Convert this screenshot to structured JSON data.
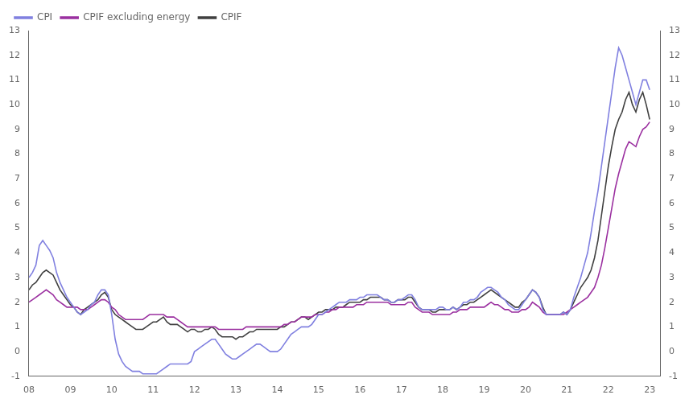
{
  "chart_data": {
    "type": "line",
    "x": [
      2008,
      2008.083333,
      2008.166667,
      2008.25,
      2008.333333,
      2008.416667,
      2008.5,
      2008.583333,
      2008.666667,
      2008.75,
      2008.833333,
      2008.916667,
      2009,
      2009.083333,
      2009.166667,
      2009.25,
      2009.333333,
      2009.416667,
      2009.5,
      2009.583333,
      2009.666667,
      2009.75,
      2009.833333,
      2009.916667,
      2010,
      2010.083333,
      2010.166667,
      2010.25,
      2010.333333,
      2010.416667,
      2010.5,
      2010.583333,
      2010.666667,
      2010.75,
      2010.833333,
      2010.916667,
      2011,
      2011.083333,
      2011.166667,
      2011.25,
      2011.333333,
      2011.416667,
      2011.5,
      2011.583333,
      2011.666667,
      2011.75,
      2011.833333,
      2011.916667,
      2012,
      2012.083333,
      2012.166667,
      2012.25,
      2012.333333,
      2012.416667,
      2012.5,
      2012.583333,
      2012.666667,
      2012.75,
      2012.833333,
      2012.916667,
      2013,
      2013.083333,
      2013.166667,
      2013.25,
      2013.333333,
      2013.416667,
      2013.5,
      2013.583333,
      2013.666667,
      2013.75,
      2013.833333,
      2013.916667,
      2014,
      2014.083333,
      2014.166667,
      2014.25,
      2014.333333,
      2014.416667,
      2014.5,
      2014.583333,
      2014.666667,
      2014.75,
      2014.833333,
      2014.916667,
      2015,
      2015.083333,
      2015.166667,
      2015.25,
      2015.333333,
      2015.416667,
      2015.5,
      2015.583333,
      2015.666667,
      2015.75,
      2015.833333,
      2015.916667,
      2016,
      2016.083333,
      2016.166667,
      2016.25,
      2016.333333,
      2016.416667,
      2016.5,
      2016.583333,
      2016.666667,
      2016.75,
      2016.833333,
      2016.916667,
      2017,
      2017.083333,
      2017.166667,
      2017.25,
      2017.333333,
      2017.416667,
      2017.5,
      2017.583333,
      2017.666667,
      2017.75,
      2017.833333,
      2017.916667,
      2018,
      2018.083333,
      2018.166667,
      2018.25,
      2018.333333,
      2018.416667,
      2018.5,
      2018.583333,
      2018.666667,
      2018.75,
      2018.833333,
      2018.916667,
      2019,
      2019.083333,
      2019.166667,
      2019.25,
      2019.333333,
      2019.416667,
      2019.5,
      2019.583333,
      2019.666667,
      2019.75,
      2019.833333,
      2019.916667,
      2020,
      2020.083333,
      2020.166667,
      2020.25,
      2020.333333,
      2020.416667,
      2020.5,
      2020.583333,
      2020.666667,
      2020.75,
      2020.833333,
      2020.916667,
      2021,
      2021.083333,
      2021.166667,
      2021.25,
      2021.333333,
      2021.416667,
      2021.5,
      2021.583333,
      2021.666667,
      2021.75,
      2021.833333,
      2021.916667,
      2022,
      2022.083333,
      2022.166667,
      2022.25,
      2022.333333,
      2022.416667,
      2022.5,
      2022.583333,
      2022.666667,
      2022.75,
      2022.833333,
      2022.916667,
      2023
    ],
    "series": [
      {
        "name": "CPI",
        "color": "#8080E0",
        "values": [
          3.0,
          3.2,
          3.5,
          4.3,
          4.5,
          4.3,
          4.1,
          3.8,
          3.2,
          2.8,
          2.5,
          2.2,
          2.0,
          1.8,
          1.6,
          1.5,
          1.6,
          1.7,
          1.9,
          2.0,
          2.3,
          2.5,
          2.5,
          2.3,
          1.5,
          0.5,
          -0.1,
          -0.4,
          -0.6,
          -0.7,
          -0.8,
          -0.8,
          -0.8,
          -0.9,
          -0.9,
          -0.9,
          -0.9,
          -0.9,
          -0.8,
          -0.7,
          -0.6,
          -0.5,
          -0.5,
          -0.5,
          -0.5,
          -0.5,
          -0.5,
          -0.4,
          0.0,
          0.1,
          0.2,
          0.3,
          0.4,
          0.5,
          0.5,
          0.3,
          0.1,
          -0.1,
          -0.2,
          -0.3,
          -0.3,
          -0.2,
          -0.1,
          0.0,
          0.1,
          0.2,
          0.3,
          0.3,
          0.2,
          0.1,
          0.0,
          0.0,
          0.0,
          0.1,
          0.3,
          0.5,
          0.7,
          0.8,
          0.9,
          1.0,
          1.0,
          1.0,
          1.1,
          1.3,
          1.5,
          1.5,
          1.6,
          1.7,
          1.8,
          1.9,
          2.0,
          2.0,
          2.0,
          2.1,
          2.1,
          2.1,
          2.2,
          2.2,
          2.3,
          2.3,
          2.3,
          2.3,
          2.2,
          2.1,
          2.1,
          2.0,
          2.0,
          2.1,
          2.1,
          2.2,
          2.3,
          2.3,
          2.1,
          1.8,
          1.7,
          1.7,
          1.7,
          1.7,
          1.7,
          1.8,
          1.8,
          1.7,
          1.7,
          1.8,
          1.7,
          1.8,
          2.0,
          2.0,
          2.1,
          2.1,
          2.2,
          2.4,
          2.5,
          2.6,
          2.6,
          2.5,
          2.4,
          2.2,
          2.1,
          1.9,
          1.8,
          1.7,
          1.7,
          1.9,
          2.1,
          2.3,
          2.5,
          2.4,
          2.2,
          1.7,
          1.5,
          1.5,
          1.5,
          1.5,
          1.5,
          1.6,
          1.5,
          1.7,
          2.2,
          2.6,
          3.0,
          3.5,
          4.0,
          4.8,
          5.7,
          6.5,
          7.5,
          8.5,
          9.5,
          10.5,
          11.5,
          12.3,
          12.0,
          11.5,
          11.0,
          10.5,
          10.0,
          10.5,
          11.0,
          11.0,
          10.6
        ]
      },
      {
        "name": "CPIF excluding energy",
        "color": "#9B30A0",
        "values": [
          2.0,
          2.1,
          2.2,
          2.3,
          2.4,
          2.5,
          2.4,
          2.3,
          2.1,
          2.0,
          1.9,
          1.8,
          1.8,
          1.8,
          1.8,
          1.7,
          1.7,
          1.7,
          1.8,
          1.9,
          2.0,
          2.1,
          2.1,
          2.0,
          1.8,
          1.7,
          1.5,
          1.4,
          1.3,
          1.3,
          1.3,
          1.3,
          1.3,
          1.3,
          1.4,
          1.5,
          1.5,
          1.5,
          1.5,
          1.5,
          1.4,
          1.4,
          1.4,
          1.3,
          1.2,
          1.1,
          1.0,
          1.0,
          1.0,
          1.0,
          1.0,
          1.0,
          1.0,
          1.0,
          1.0,
          0.9,
          0.9,
          0.9,
          0.9,
          0.9,
          0.9,
          0.9,
          0.9,
          1.0,
          1.0,
          1.0,
          1.0,
          1.0,
          1.0,
          1.0,
          1.0,
          1.0,
          1.0,
          1.0,
          1.1,
          1.1,
          1.2,
          1.2,
          1.3,
          1.4,
          1.4,
          1.4,
          1.4,
          1.5,
          1.5,
          1.5,
          1.6,
          1.6,
          1.7,
          1.7,
          1.8,
          1.8,
          1.8,
          1.8,
          1.8,
          1.9,
          1.9,
          1.9,
          2.0,
          2.0,
          2.0,
          2.0,
          2.0,
          2.0,
          2.0,
          1.9,
          1.9,
          1.9,
          1.9,
          1.9,
          2.0,
          2.0,
          1.8,
          1.7,
          1.6,
          1.6,
          1.6,
          1.5,
          1.5,
          1.5,
          1.5,
          1.5,
          1.5,
          1.6,
          1.6,
          1.7,
          1.7,
          1.7,
          1.8,
          1.8,
          1.8,
          1.8,
          1.8,
          1.9,
          2.0,
          1.9,
          1.9,
          1.8,
          1.7,
          1.7,
          1.6,
          1.6,
          1.6,
          1.7,
          1.7,
          1.8,
          2.0,
          1.9,
          1.8,
          1.6,
          1.5,
          1.5,
          1.5,
          1.5,
          1.5,
          1.5,
          1.6,
          1.7,
          1.8,
          1.9,
          2.0,
          2.1,
          2.2,
          2.4,
          2.6,
          3.0,
          3.5,
          4.2,
          5.0,
          5.8,
          6.6,
          7.2,
          7.7,
          8.2,
          8.5,
          8.4,
          8.3,
          8.7,
          9.0,
          9.1,
          9.3
        ]
      },
      {
        "name": "CPIF",
        "color": "#404040",
        "values": [
          2.5,
          2.7,
          2.8,
          3.0,
          3.2,
          3.3,
          3.2,
          3.1,
          2.8,
          2.5,
          2.3,
          2.1,
          1.9,
          1.8,
          1.6,
          1.5,
          1.7,
          1.8,
          1.9,
          2.0,
          2.1,
          2.3,
          2.4,
          2.2,
          1.7,
          1.5,
          1.4,
          1.3,
          1.2,
          1.1,
          1.0,
          0.9,
          0.9,
          0.9,
          1.0,
          1.1,
          1.2,
          1.2,
          1.3,
          1.4,
          1.2,
          1.1,
          1.1,
          1.1,
          1.0,
          0.9,
          0.8,
          0.9,
          0.9,
          0.8,
          0.8,
          0.9,
          0.9,
          1.0,
          0.9,
          0.7,
          0.6,
          0.6,
          0.6,
          0.6,
          0.5,
          0.6,
          0.6,
          0.7,
          0.8,
          0.8,
          0.9,
          0.9,
          0.9,
          0.9,
          0.9,
          0.9,
          0.9,
          1.0,
          1.0,
          1.1,
          1.2,
          1.2,
          1.3,
          1.4,
          1.4,
          1.3,
          1.4,
          1.5,
          1.6,
          1.6,
          1.7,
          1.7,
          1.7,
          1.8,
          1.8,
          1.8,
          1.9,
          2.0,
          2.0,
          2.0,
          2.0,
          2.1,
          2.1,
          2.2,
          2.2,
          2.2,
          2.2,
          2.1,
          2.1,
          2.0,
          2.0,
          2.1,
          2.1,
          2.1,
          2.2,
          2.2,
          2.0,
          1.8,
          1.7,
          1.7,
          1.7,
          1.6,
          1.6,
          1.7,
          1.7,
          1.7,
          1.7,
          1.8,
          1.7,
          1.8,
          1.9,
          1.9,
          2.0,
          2.0,
          2.1,
          2.2,
          2.3,
          2.4,
          2.5,
          2.4,
          2.3,
          2.2,
          2.1,
          2.0,
          1.9,
          1.8,
          1.8,
          2.0,
          2.1,
          2.3,
          2.5,
          2.4,
          2.2,
          1.8,
          1.5,
          1.5,
          1.5,
          1.5,
          1.5,
          1.6,
          1.5,
          1.7,
          2.0,
          2.3,
          2.6,
          2.8,
          3.0,
          3.3,
          3.8,
          4.5,
          5.5,
          6.5,
          7.5,
          8.3,
          9.0,
          9.4,
          9.7,
          10.2,
          10.5,
          10.0,
          9.7,
          10.2,
          10.5,
          10.0,
          9.4
        ]
      }
    ],
    "xlim": [
      2008.0,
      2023.25
    ],
    "xticks": [
      {
        "value": 2008,
        "label": "08"
      },
      {
        "value": 2009,
        "label": "09"
      },
      {
        "value": 2010,
        "label": "10"
      },
      {
        "value": 2011,
        "label": "11"
      },
      {
        "value": 2012,
        "label": "12"
      },
      {
        "value": 2013,
        "label": "13"
      },
      {
        "value": 2014,
        "label": "14"
      },
      {
        "value": 2015,
        "label": "15"
      },
      {
        "value": 2016,
        "label": "16"
      },
      {
        "value": 2017,
        "label": "17"
      },
      {
        "value": 2018,
        "label": "18"
      },
      {
        "value": 2019,
        "label": "19"
      },
      {
        "value": 2020,
        "label": "20"
      },
      {
        "value": 2021,
        "label": "21"
      },
      {
        "value": 2022,
        "label": "22"
      },
      {
        "value": 2023,
        "label": "23"
      }
    ],
    "ylim": [
      -1,
      13
    ],
    "yticks": [
      -1,
      0,
      1,
      2,
      3,
      4,
      5,
      6,
      7,
      8,
      9,
      10,
      11,
      12,
      13
    ],
    "y2lim": [
      -1,
      13
    ],
    "y2ticks": [
      -1,
      0,
      1,
      2,
      3,
      4,
      5,
      6,
      7,
      8,
      9,
      10,
      11,
      12,
      13
    ],
    "grid": false,
    "legend": "upper left"
  }
}
